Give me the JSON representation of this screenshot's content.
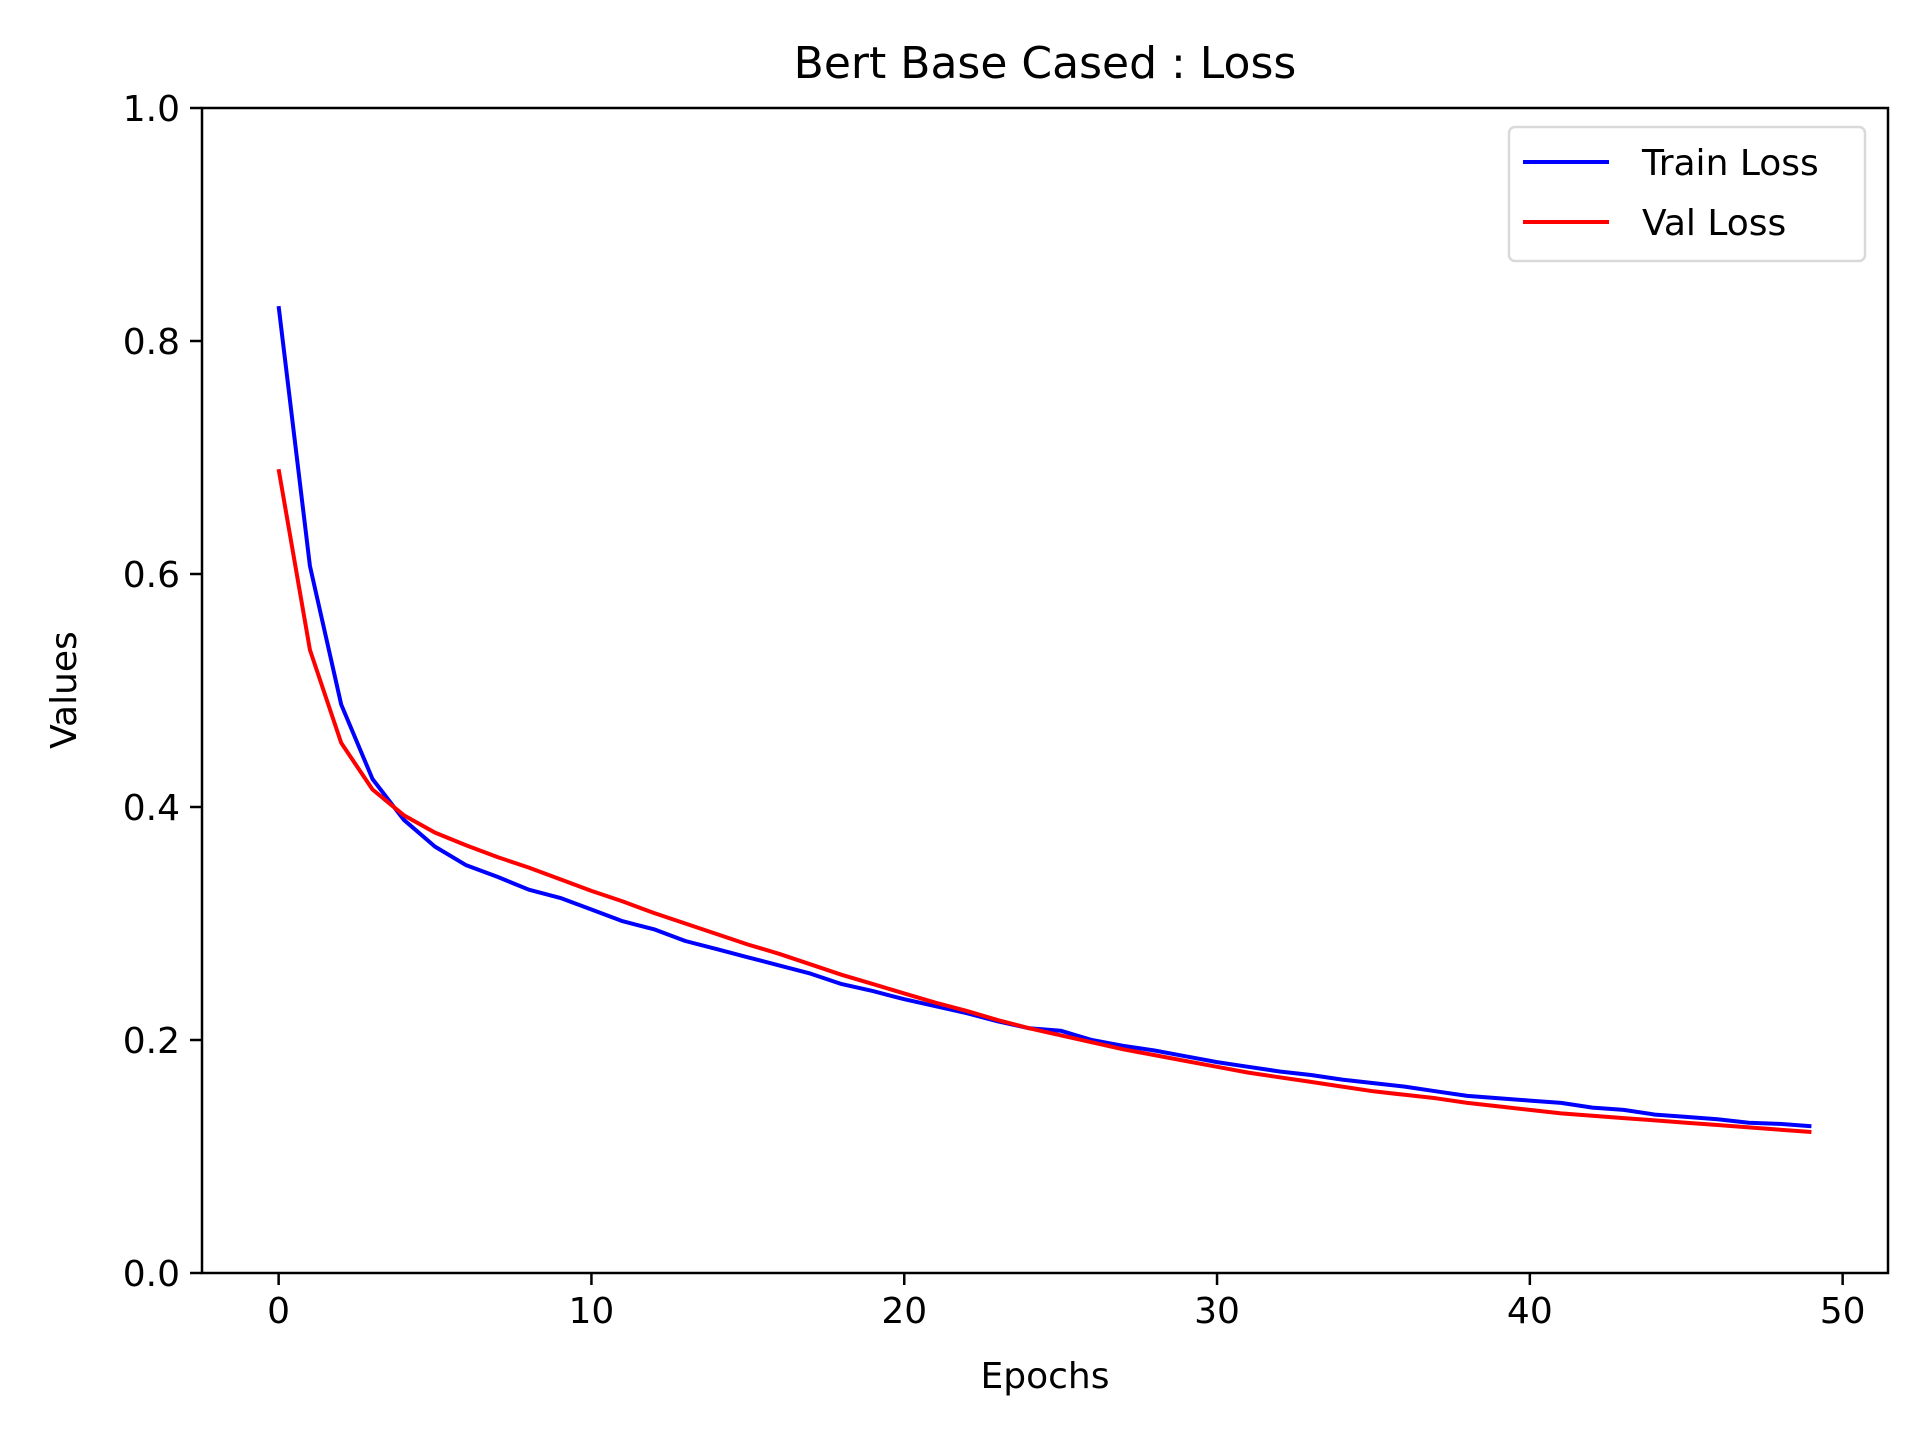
{
  "chart_data": {
    "type": "line",
    "title": "Bert Base Cased : Loss",
    "xlabel": "Epochs",
    "ylabel": "Values",
    "xlim": [
      -2.45,
      51.45
    ],
    "ylim": [
      0.0,
      1.0
    ],
    "xticks": [
      0,
      10,
      20,
      30,
      40,
      50
    ],
    "xtick_labels": [
      "0",
      "10",
      "20",
      "30",
      "40",
      "50"
    ],
    "yticks": [
      0.0,
      0.2,
      0.4,
      0.6,
      0.8,
      1.0
    ],
    "ytick_labels": [
      "0.0",
      "0.2",
      "0.4",
      "0.6",
      "0.8",
      "1.0"
    ],
    "grid": false,
    "legend_position": "top-right",
    "x": [
      0,
      1,
      2,
      3,
      4,
      5,
      6,
      7,
      8,
      9,
      10,
      11,
      12,
      13,
      14,
      15,
      16,
      17,
      18,
      19,
      20,
      21,
      22,
      23,
      24,
      25,
      26,
      27,
      28,
      29,
      30,
      31,
      32,
      33,
      34,
      35,
      36,
      37,
      38,
      39,
      40,
      41,
      42,
      43,
      44,
      45,
      46,
      47,
      48,
      49
    ],
    "series": [
      {
        "name": "Train Loss",
        "color": "#0000ff",
        "values": [
          0.83,
          0.607,
          0.488,
          0.424,
          0.389,
          0.366,
          0.35,
          0.34,
          0.329,
          0.322,
          0.312,
          0.302,
          0.295,
          0.285,
          0.278,
          0.271,
          0.264,
          0.257,
          0.248,
          0.242,
          0.235,
          0.229,
          0.223,
          0.216,
          0.21,
          0.208,
          0.2,
          0.195,
          0.191,
          0.186,
          0.181,
          0.177,
          0.173,
          0.17,
          0.166,
          0.163,
          0.16,
          0.156,
          0.152,
          0.15,
          0.148,
          0.146,
          0.142,
          0.14,
          0.136,
          0.134,
          0.132,
          0.129,
          0.128,
          0.126
        ]
      },
      {
        "name": "Val Loss",
        "color": "#ff0000",
        "values": [
          0.69,
          0.535,
          0.455,
          0.415,
          0.393,
          0.378,
          0.367,
          0.357,
          0.348,
          0.338,
          0.328,
          0.319,
          0.309,
          0.3,
          0.291,
          0.282,
          0.274,
          0.265,
          0.256,
          0.248,
          0.24,
          0.232,
          0.225,
          0.217,
          0.21,
          0.204,
          0.198,
          0.192,
          0.187,
          0.182,
          0.177,
          0.172,
          0.168,
          0.164,
          0.16,
          0.156,
          0.153,
          0.15,
          0.146,
          0.143,
          0.14,
          0.137,
          0.135,
          0.133,
          0.131,
          0.129,
          0.127,
          0.125,
          0.123,
          0.121
        ]
      }
    ]
  }
}
